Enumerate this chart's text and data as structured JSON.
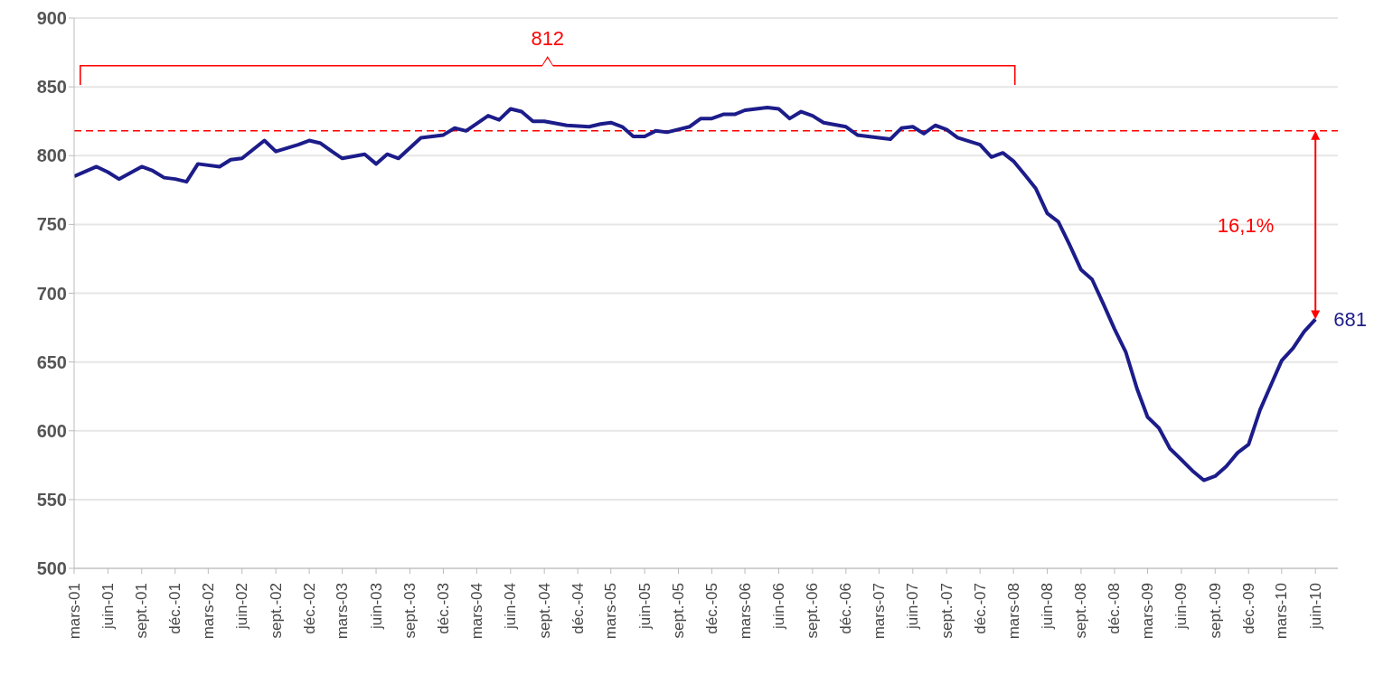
{
  "chart_data": {
    "type": "line",
    "x": [
      "2001-03",
      "2001-05",
      "2001-06",
      "2001-07",
      "2001-09",
      "2001-10",
      "2001-11",
      "2001-12",
      "2002-01",
      "2002-02",
      "2002-04",
      "2002-05",
      "2002-06",
      "2002-08",
      "2002-09",
      "2002-11",
      "2002-12",
      "2003-01",
      "2003-02",
      "2003-03",
      "2003-05",
      "2003-06",
      "2003-07",
      "2003-08",
      "2003-10",
      "2003-12",
      "2004-01",
      "2004-02",
      "2004-04",
      "2004-05",
      "2004-06",
      "2004-07",
      "2004-08",
      "2004-09",
      "2004-11",
      "2005-01",
      "2005-02",
      "2005-03",
      "2005-04",
      "2005-05",
      "2005-06",
      "2005-07",
      "2005-08",
      "2005-10",
      "2005-11",
      "2005-12",
      "2006-01",
      "2006-02",
      "2006-03",
      "2006-05",
      "2006-06",
      "2006-07",
      "2006-08",
      "2006-09",
      "2006-10",
      "2006-12",
      "2007-01",
      "2007-03",
      "2007-04",
      "2007-05",
      "2007-06",
      "2007-07",
      "2007-08",
      "2007-09",
      "2007-10",
      "2007-12",
      "2008-01",
      "2008-02",
      "2008-03",
      "2008-04",
      "2008-05",
      "2008-06",
      "2008-07",
      "2008-08",
      "2008-09",
      "2008-10",
      "2008-11",
      "2008-12",
      "2009-01",
      "2009-02",
      "2009-03",
      "2009-04",
      "2009-05",
      "2009-06",
      "2009-07",
      "2009-08",
      "2009-09",
      "2009-10",
      "2009-11",
      "2009-12",
      "2010-01",
      "2010-02",
      "2010-03",
      "2010-04",
      "2010-05",
      "2010-06"
    ],
    "series": [
      {
        "color": "#1c1c8a",
        "values": [
          785,
          792,
          788,
          783,
          792,
          789,
          784,
          783,
          781,
          794,
          792,
          797,
          798,
          811,
          803,
          808,
          811,
          809,
          803,
          798,
          801,
          794,
          801,
          798,
          813,
          815,
          820,
          818,
          829,
          826,
          834,
          832,
          825,
          825,
          822,
          821,
          823,
          824,
          821,
          814,
          814,
          818,
          817,
          821,
          827,
          827,
          830,
          830,
          833,
          835,
          834,
          827,
          832,
          829,
          824,
          821,
          815,
          813,
          812,
          820,
          821,
          816,
          822,
          819,
          813,
          808,
          799,
          802,
          796,
          786,
          776,
          758,
          752,
          735,
          717,
          710,
          692,
          674,
          657,
          630,
          610,
          602,
          587,
          579,
          571,
          564,
          567,
          574,
          584,
          590,
          615,
          634,
          651,
          660,
          672,
          681
        ]
      }
    ],
    "xlim": [
      "2001-03",
      "2010-08"
    ],
    "xticks": [
      {
        "value": "2001-03",
        "label": "mars-01"
      },
      {
        "value": "2001-06",
        "label": "juin-01"
      },
      {
        "value": "2001-09",
        "label": "sept.-01"
      },
      {
        "value": "2001-12",
        "label": "déc.-01"
      },
      {
        "value": "2002-03",
        "label": "mars-02"
      },
      {
        "value": "2002-06",
        "label": "juin-02"
      },
      {
        "value": "2002-09",
        "label": "sept.-02"
      },
      {
        "value": "2002-12",
        "label": "déc.-02"
      },
      {
        "value": "2003-03",
        "label": "mars-03"
      },
      {
        "value": "2003-06",
        "label": "juin-03"
      },
      {
        "value": "2003-09",
        "label": "sept.-03"
      },
      {
        "value": "2003-12",
        "label": "déc.-03"
      },
      {
        "value": "2004-03",
        "label": "mars-04"
      },
      {
        "value": "2004-06",
        "label": "juin-04"
      },
      {
        "value": "2004-09",
        "label": "sept.-04"
      },
      {
        "value": "2004-12",
        "label": "déc.-04"
      },
      {
        "value": "2005-03",
        "label": "mars-05"
      },
      {
        "value": "2005-06",
        "label": "juin-05"
      },
      {
        "value": "2005-09",
        "label": "sept.-05"
      },
      {
        "value": "2005-12",
        "label": "déc.-05"
      },
      {
        "value": "2006-03",
        "label": "mars-06"
      },
      {
        "value": "2006-06",
        "label": "juin-06"
      },
      {
        "value": "2006-09",
        "label": "sept.-06"
      },
      {
        "value": "2006-12",
        "label": "déc.-06"
      },
      {
        "value": "2007-03",
        "label": "mars-07"
      },
      {
        "value": "2007-06",
        "label": "juin-07"
      },
      {
        "value": "2007-09",
        "label": "sept.-07"
      },
      {
        "value": "2007-12",
        "label": "déc.-07"
      },
      {
        "value": "2008-03",
        "label": "mars-08"
      },
      {
        "value": "2008-06",
        "label": "juin-08"
      },
      {
        "value": "2008-09",
        "label": "sept.-08"
      },
      {
        "value": "2008-12",
        "label": "déc.-08"
      },
      {
        "value": "2009-03",
        "label": "mars-09"
      },
      {
        "value": "2009-06",
        "label": "juin-09"
      },
      {
        "value": "2009-09",
        "label": "sept.-09"
      },
      {
        "value": "2009-12",
        "label": "déc.-09"
      },
      {
        "value": "2010-03",
        "label": "mars-10"
      },
      {
        "value": "2010-06",
        "label": "juin-10"
      }
    ],
    "ylim": [
      500,
      900
    ],
    "yticks": [
      500,
      550,
      600,
      650,
      700,
      750,
      800,
      850,
      900
    ],
    "grid": "y",
    "ref_lines": [
      {
        "axis": "y",
        "value": 818,
        "color": "#ff0000",
        "line_style": "dashed"
      }
    ],
    "annotations": [
      "812",
      "16,1%",
      {
        "text": "681",
        "x": "2010-06",
        "y": 681
      }
    ]
  }
}
